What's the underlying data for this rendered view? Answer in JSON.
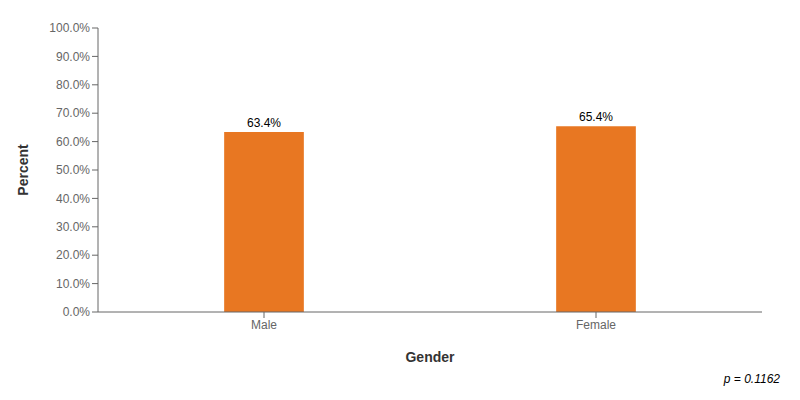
{
  "chart_data": {
    "type": "bar",
    "categories": [
      "Male",
      "Female"
    ],
    "values": [
      63.4,
      65.4
    ],
    "value_labels": [
      "63.4%",
      "65.4%"
    ],
    "data_labels": true,
    "color": "#E87722",
    "xlabel": "Gender",
    "ylabel": "Percent",
    "ylim": [
      0,
      100
    ],
    "yticks": [
      {
        "value": 0,
        "label": "0.0%"
      },
      {
        "value": 10,
        "label": "10.0%"
      },
      {
        "value": 20,
        "label": "20.0%"
      },
      {
        "value": 30,
        "label": "30.0%"
      },
      {
        "value": 40,
        "label": "40.0%"
      },
      {
        "value": 50,
        "label": "50.0%"
      },
      {
        "value": 60,
        "label": "60.0%"
      },
      {
        "value": 70,
        "label": "70.0%"
      },
      {
        "value": 80,
        "label": "80.0%"
      },
      {
        "value": 90,
        "label": "90.0%"
      },
      {
        "value": 100,
        "label": "100.0%"
      }
    ],
    "grid": false,
    "annotation": "p = 0.1162"
  }
}
